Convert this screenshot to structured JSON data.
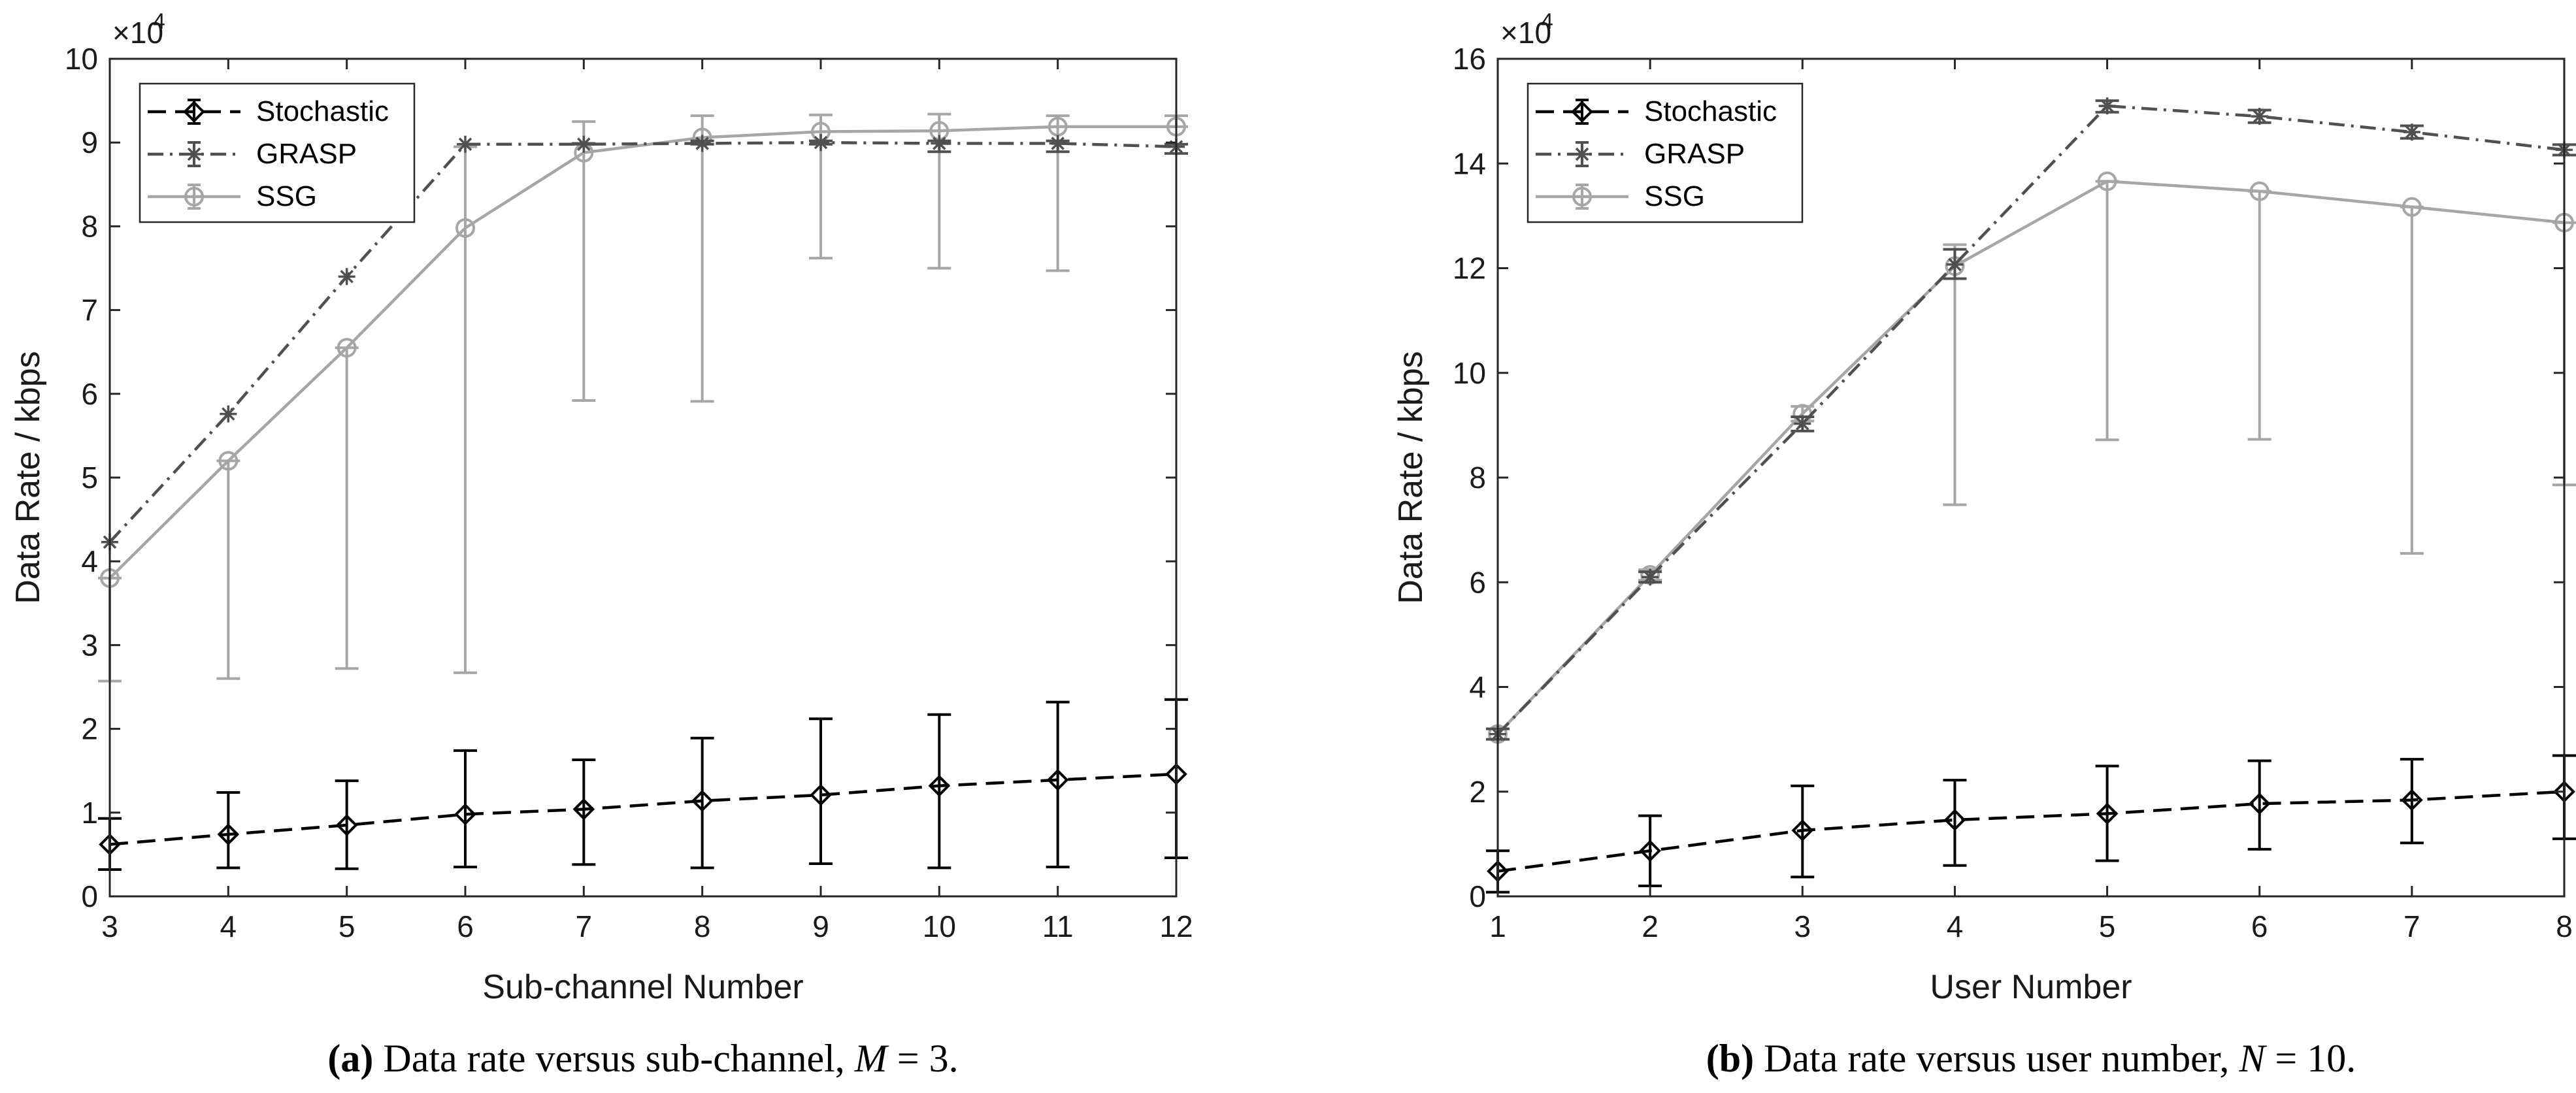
{
  "chart_data": [
    {
      "type": "line",
      "panel": "a",
      "xlabel": "Sub-channel Number",
      "ylabel": "Data Rate / kbps",
      "y_exponent_label": "×10",
      "y_exponent": "4",
      "xlim": [
        3,
        12
      ],
      "ylim": [
        0,
        100000
      ],
      "x_ticks": [
        3,
        4,
        5,
        6,
        7,
        8,
        9,
        10,
        11,
        12
      ],
      "y_ticks": [
        0,
        10000,
        20000,
        30000,
        40000,
        50000,
        60000,
        70000,
        80000,
        90000,
        100000
      ],
      "y_tick_labels": [
        "0",
        "1",
        "2",
        "3",
        "4",
        "5",
        "6",
        "7",
        "8",
        "9",
        "10"
      ],
      "x": [
        3,
        4,
        5,
        6,
        7,
        8,
        9,
        10,
        11,
        12
      ],
      "legend_position": "top-left",
      "series": [
        {
          "name": "Stochastic",
          "color": "#000000",
          "dash": "dashed",
          "marker": "diamond",
          "values": [
            6200,
            7400,
            8500,
            9800,
            10400,
            11400,
            12100,
            13200,
            13900,
            14600
          ],
          "lower": [
            3200,
            3400,
            3300,
            3500,
            3800,
            3400,
            3900,
            3400,
            3500,
            4600
          ],
          "upper": [
            9300,
            12400,
            13800,
            17400,
            16300,
            18900,
            21200,
            21700,
            23200,
            23500
          ]
        },
        {
          "name": "GRASP",
          "color": "#505050",
          "dash": "dashdot",
          "marker": "asterisk",
          "values": [
            42300,
            57600,
            74000,
            89800,
            89800,
            89900,
            90000,
            89900,
            89900,
            89500
          ],
          "lower": [
            42300,
            57600,
            74000,
            89800,
            89800,
            89800,
            89800,
            88900,
            88900,
            88700
          ],
          "upper": [
            42300,
            57600,
            74000,
            89800,
            89900,
            90200,
            90200,
            90200,
            90200,
            89800
          ]
        },
        {
          "name": "SSG",
          "color": "#a6a6a6",
          "dash": "solid",
          "marker": "circle",
          "values": [
            38000,
            52000,
            65500,
            79800,
            88800,
            90600,
            91300,
            91400,
            91900,
            91900
          ],
          "lower": [
            25700,
            26000,
            27200,
            26700,
            59200,
            59100,
            76200,
            75000,
            74700,
            91900
          ],
          "upper": [
            38000,
            52000,
            65500,
            89500,
            92500,
            93200,
            93300,
            93400,
            93200,
            93200
          ]
        }
      ]
    },
    {
      "type": "line",
      "panel": "b",
      "xlabel": "User Number",
      "ylabel": "Data Rate / kbps",
      "y_exponent_label": "×10",
      "y_exponent": "4",
      "xlim": [
        1,
        8
      ],
      "ylim": [
        0,
        160000
      ],
      "x_ticks": [
        1,
        2,
        3,
        4,
        5,
        6,
        7,
        8
      ],
      "y_ticks": [
        0,
        20000,
        40000,
        60000,
        80000,
        100000,
        120000,
        140000,
        160000
      ],
      "y_tick_labels": [
        "0",
        "2",
        "4",
        "6",
        "8",
        "10",
        "12",
        "14",
        "16"
      ],
      "x": [
        1,
        2,
        3,
        4,
        5,
        6,
        7,
        8
      ],
      "legend_position": "top-left",
      "series": [
        {
          "name": "Stochastic",
          "color": "#000000",
          "dash": "dashed",
          "marker": "diamond",
          "values": [
            4800,
            8700,
            12600,
            14600,
            15800,
            17700,
            18400,
            20000
          ],
          "lower": [
            800,
            2000,
            3700,
            5900,
            6800,
            9000,
            10200,
            11000
          ],
          "upper": [
            8700,
            15400,
            21100,
            22200,
            24900,
            25900,
            26200,
            26900
          ]
        },
        {
          "name": "GRASP",
          "color": "#505050",
          "dash": "dashdot",
          "marker": "asterisk",
          "values": [
            31000,
            61000,
            90300,
            120700,
            151000,
            149000,
            146000,
            142600
          ],
          "lower": [
            30000,
            60000,
            88900,
            118000,
            149800,
            147800,
            144800,
            141600
          ],
          "upper": [
            32000,
            62000,
            91600,
            123600,
            152000,
            150200,
            147200,
            143600
          ]
        },
        {
          "name": "SSG",
          "color": "#a6a6a6",
          "dash": "solid",
          "marker": "circle",
          "values": [
            31000,
            61400,
            92200,
            120400,
            136600,
            134700,
            131700,
            128700
          ],
          "lower": [
            30000,
            60400,
            90800,
            74800,
            87200,
            87300,
            65500,
            78600
          ],
          "upper": [
            32000,
            62400,
            93600,
            124500,
            136600,
            134700,
            131700,
            128700
          ]
        }
      ]
    }
  ],
  "captions": [
    {
      "label": "(a)",
      "text": " Data rate versus sub-channel, ",
      "var": "M",
      "eq": " = 3."
    },
    {
      "label": "(b)",
      "text": " Data rate versus user number, ",
      "var": "N",
      "eq": " = 10."
    }
  ]
}
